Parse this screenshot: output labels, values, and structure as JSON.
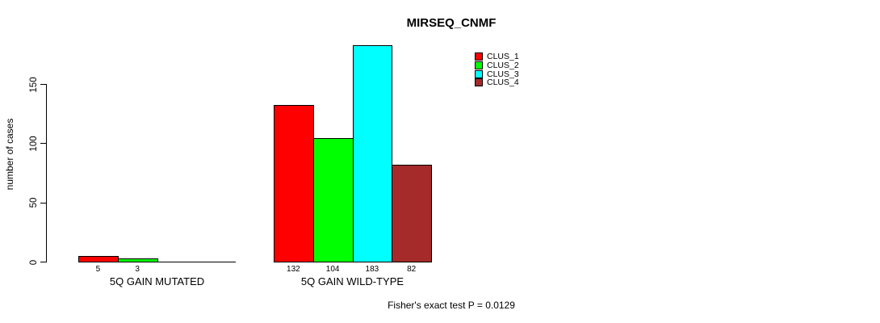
{
  "chart_data": {
    "type": "bar",
    "title": "MIRSEQ_CNMF",
    "ylabel": "number of cases",
    "xlabel": "",
    "yticks": [
      0,
      50,
      100,
      150
    ],
    "ylim": [
      0,
      183
    ],
    "grid": false,
    "legend_position": "top-right",
    "categories": [
      "5Q GAIN MUTATED",
      "5Q GAIN WILD-TYPE"
    ],
    "series": [
      {
        "name": "CLUS_1",
        "color": "#ff0000",
        "values": [
          5,
          132
        ]
      },
      {
        "name": "CLUS_2",
        "color": "#00ff00",
        "values": [
          3,
          104
        ]
      },
      {
        "name": "CLUS_3",
        "color": "#00ffff",
        "values": [
          0,
          183
        ]
      },
      {
        "name": "CLUS_4",
        "color": "#a52a2a",
        "values": [
          0,
          82
        ]
      }
    ],
    "value_labels_visible": [
      "5",
      "3",
      "132",
      "104",
      "183",
      "82"
    ],
    "annotation": "Fisher's exact test P = 0.0129"
  }
}
